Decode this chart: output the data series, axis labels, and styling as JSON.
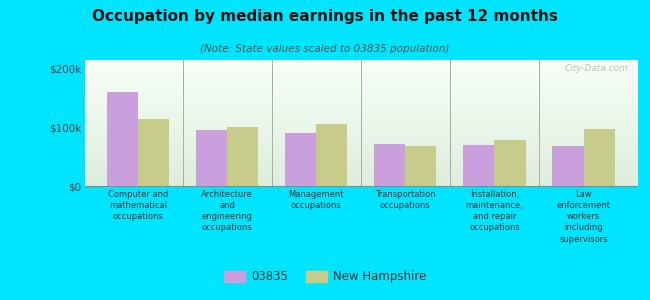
{
  "title": "Occupation by median earnings in the past 12 months",
  "subtitle": "(Note: State values scaled to 03835 population)",
  "categories": [
    "Computer and\nmathematical\noccupations",
    "Architecture\nand\nengineering\noccupations",
    "Management\noccupations",
    "Transportation\noccupations",
    "Installation,\nmaintenance,\nand repair\noccupations",
    "Law\nenforcement\nworkers\nincluding\nsupervisors"
  ],
  "values_03835": [
    160000,
    95000,
    90000,
    72000,
    70000,
    68000
  ],
  "values_nh": [
    115000,
    100000,
    105000,
    68000,
    78000,
    98000
  ],
  "color_03835": "#c9a0dc",
  "color_nh": "#c8cc8a",
  "background_color": "#00e5ff",
  "plot_bg_top": "#f8fff8",
  "plot_bg_bottom": "#ddeedd",
  "ylabel_ticks": [
    0,
    100000,
    200000
  ],
  "ylabel_labels": [
    "$0",
    "$100k",
    "$200k"
  ],
  "ylim": [
    0,
    215000
  ],
  "legend_03835": "03835",
  "legend_nh": "New Hampshire",
  "watermark": "City-Data.com"
}
